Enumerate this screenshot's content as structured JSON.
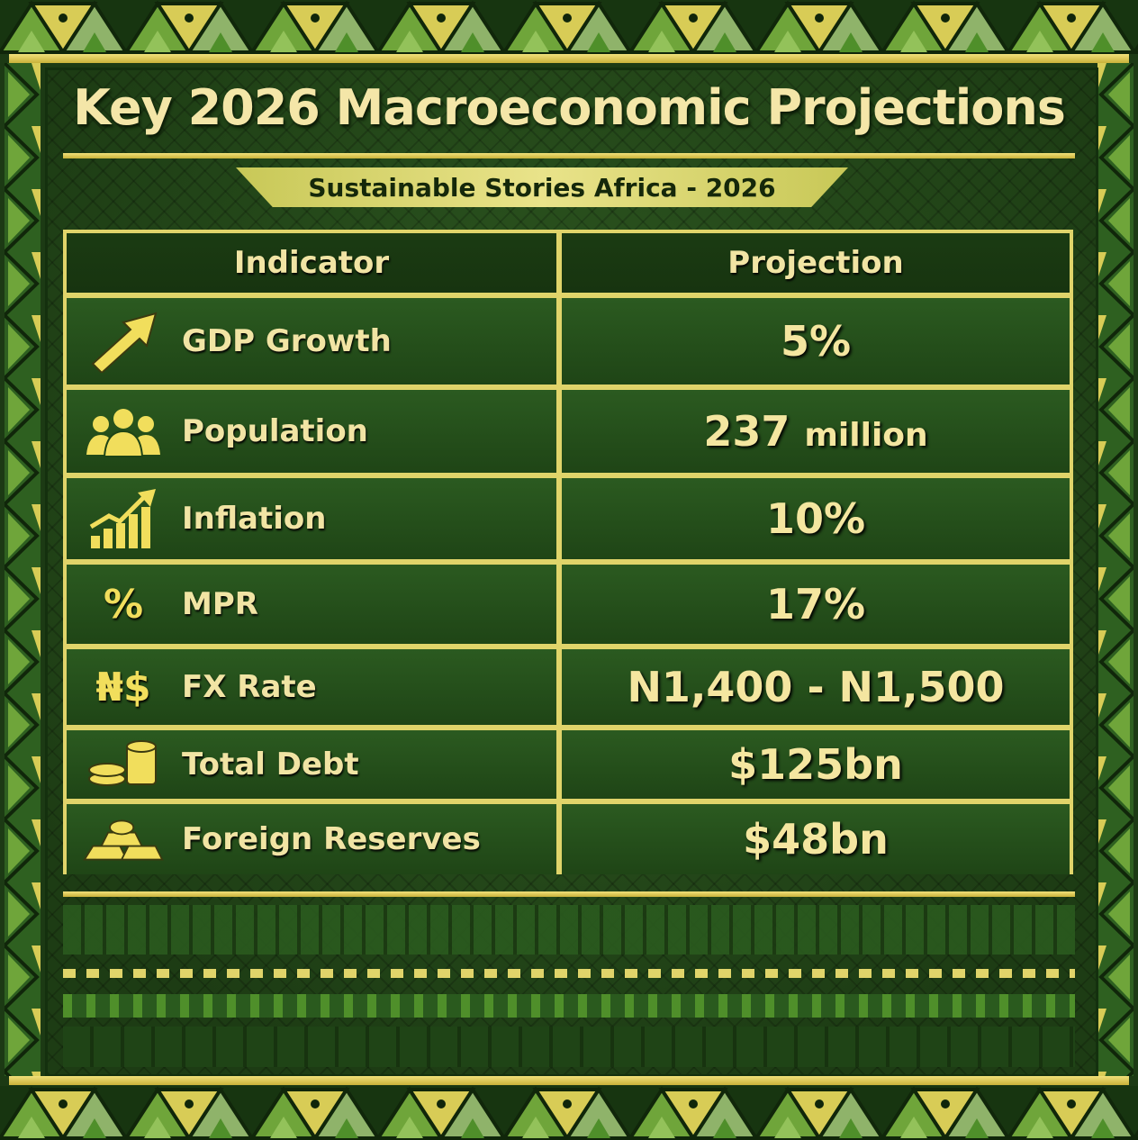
{
  "title": "Key 2026 Macroeconomic Projections",
  "subtitle": "Sustainable Stories Africa - 2026",
  "table": {
    "headers": [
      "Indicator",
      "Projection"
    ],
    "rows": [
      {
        "icon": "arrow-up-right-icon",
        "indicator": "GDP Growth",
        "projection": "5%"
      },
      {
        "icon": "people-icon",
        "indicator": "Population",
        "projection_number": "237",
        "projection_unit": "million"
      },
      {
        "icon": "growth-chart-icon",
        "indicator": "Inflation",
        "projection": "10%"
      },
      {
        "icon": "percent-icon",
        "icon_text": "%",
        "indicator": "MPR",
        "projection": "17%"
      },
      {
        "icon": "naira-dollar-icon",
        "icon_text": "₦$",
        "indicator": "FX Rate",
        "projection": "N1,400 - N1,500"
      },
      {
        "icon": "coins-icon",
        "indicator": "Total Debt",
        "projection": "$125bn"
      },
      {
        "icon": "gold-bars-icon",
        "indicator": "Foreign Reserves",
        "projection": "$48bn"
      }
    ]
  },
  "colors": {
    "background": "#1e4416",
    "gold": "#e0d46a",
    "text": "#f4e6a0",
    "banner": "#e9e38a"
  }
}
